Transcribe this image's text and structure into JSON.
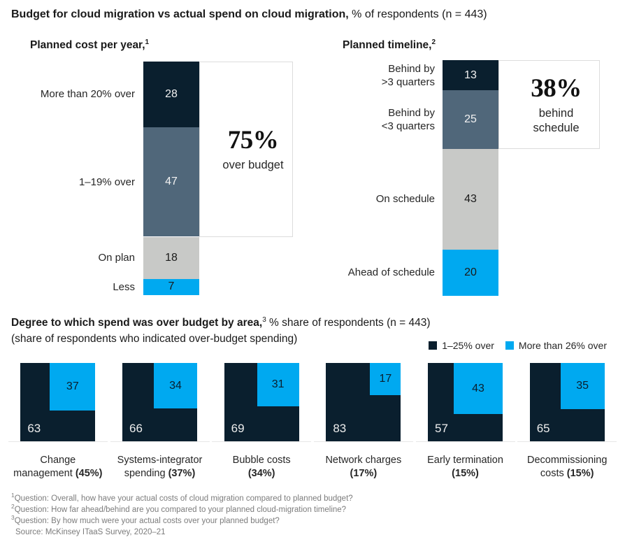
{
  "page_title": {
    "bold": "Budget for cloud migration vs actual spend on cloud migration,",
    "normal": " % of respondents (n = 443)"
  },
  "colors": {
    "navy": "#0a1f2e",
    "slate": "#50677a",
    "gray": "#c8c9c7",
    "cyan": "#00a9f0",
    "box_border": "#dcdcdc",
    "baseline": "#e7e7e7",
    "footnote": "#7c7c7c",
    "value_on_dark": "#f2f2f2",
    "value_on_light": "#1a1a1a"
  },
  "chart_data": [
    {
      "type": "bar",
      "title": "Planned cost per year,",
      "sup": "1",
      "categories": [
        "More than 20% over",
        "1–19% over",
        "On plan",
        "Less"
      ],
      "values": [
        28,
        47,
        18,
        7
      ],
      "segment_colors": [
        "navy",
        "slate",
        "gray",
        "cyan"
      ],
      "label_colors": [
        "light",
        "light",
        "dark",
        "dark"
      ],
      "ylim": [
        0,
        100
      ],
      "annotation": {
        "big": "75%",
        "caption": "over budget",
        "covers_first_n_segments": 2
      }
    },
    {
      "type": "bar",
      "title": "Planned timeline,",
      "sup": "2",
      "categories": [
        "Behind by\n>3 quarters",
        "Behind by\n<3 quarters",
        "On schedule",
        "Ahead of schedule"
      ],
      "values": [
        13,
        25,
        43,
        20
      ],
      "segment_colors": [
        "navy",
        "slate",
        "gray",
        "cyan"
      ],
      "label_colors": [
        "light",
        "light",
        "dark",
        "dark"
      ],
      "ylim": [
        0,
        100
      ],
      "annotation": {
        "big": "38%",
        "caption": "behind\nschedule",
        "covers_first_n_segments": 2
      }
    },
    {
      "type": "square-area",
      "header_bold": "Degree to which spend was over budget by area,",
      "sup": "3",
      "header_normal": " % share of respondents (n = 443)",
      "header_line2": "(share of respondents who indicated over-budget spending)",
      "legend": [
        {
          "label": "1–25% over",
          "color": "navy"
        },
        {
          "label": "More than 26% over",
          "color": "cyan"
        }
      ],
      "items": [
        {
          "name_line1": "Change",
          "name_line2": "management",
          "share": "(45%)",
          "dark": 63,
          "blue": 37
        },
        {
          "name_line1": "Systems-integrator",
          "name_line2": "spending",
          "share": "(37%)",
          "dark": 66,
          "blue": 34
        },
        {
          "name_line1": "Bubble costs",
          "name_line2": "",
          "share": "(34%)",
          "dark": 69,
          "blue": 31
        },
        {
          "name_line1": "Network charges",
          "name_line2": "",
          "share": "(17%)",
          "dark": 83,
          "blue": 17
        },
        {
          "name_line1": "Early termination",
          "name_line2": "",
          "share": "(15%)",
          "dark": 57,
          "blue": 43
        },
        {
          "name_line1": "Decommissioning",
          "name_line2": "costs",
          "share": "(15%)",
          "dark": 65,
          "blue": 35
        }
      ]
    }
  ],
  "footnotes": [
    {
      "sup": "1",
      "text": "Question: Overall, how have your actual costs of cloud migration compared to planned budget?"
    },
    {
      "sup": "2",
      "text": "Question: How far ahead/behind are you compared to your planned cloud-migration timeline?"
    },
    {
      "sup": "3",
      "text": "Question: By how much were your actual costs over your planned budget?"
    },
    {
      "sup": "",
      "text": "Source: McKinsey ITaaS Survey, 2020–21"
    }
  ]
}
